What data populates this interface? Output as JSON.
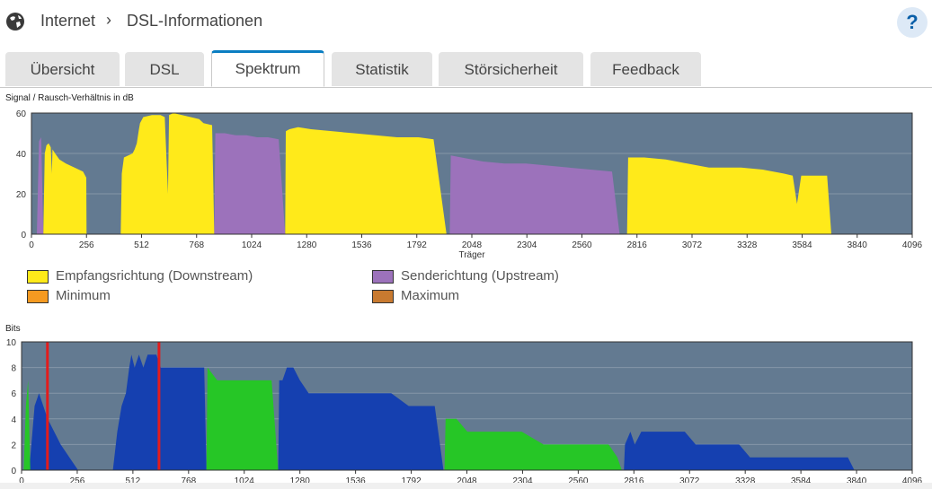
{
  "breadcrumb": {
    "root": "Internet",
    "separator": "›",
    "current": "DSL-Informationen",
    "help": "?"
  },
  "tabs": [
    {
      "label": "Übersicht",
      "active": false
    },
    {
      "label": "DSL",
      "active": false
    },
    {
      "label": "Spektrum",
      "active": true
    },
    {
      "label": "Statistik",
      "active": false
    },
    {
      "label": "Störsicherheit",
      "active": false
    },
    {
      "label": "Feedback",
      "active": false
    }
  ],
  "legend": {
    "downstream": {
      "label": "Empfangsrichtung (Downstream)",
      "color": "#ffea1a"
    },
    "upstream": {
      "label": "Senderichtung (Upstream)",
      "color": "#9c72bb"
    },
    "minimum": {
      "label": "Minimum",
      "color": "#f59a21"
    },
    "maximum": {
      "label": "Maximum",
      "color": "#c87a30"
    }
  },
  "colors": {
    "plot_bg": "#637a91",
    "downstream": "#ffea1a",
    "upstream": "#9c72bb",
    "bits_down": "#1540b0",
    "bits_up": "#26c626",
    "marker": "#e31c1c"
  },
  "chart_data": [
    {
      "type": "area",
      "title": "Signal / Rausch-Verhältnis in dB",
      "xlabel": "Träger",
      "ylabel": "",
      "xlim": [
        0,
        4096
      ],
      "ylim": [
        0,
        60
      ],
      "xticks": [
        0,
        256,
        512,
        768,
        1024,
        1280,
        1536,
        1792,
        2048,
        2304,
        2560,
        2816,
        3072,
        3328,
        3584,
        3840,
        4096
      ],
      "yticks": [
        0,
        20,
        40,
        60
      ],
      "grid": true,
      "series": [
        {
          "name": "Empfangsrichtung (Downstream)",
          "direction": "down",
          "segments": [
            [
              [
                55,
                0
              ],
              [
                62,
                40
              ],
              [
                70,
                44
              ],
              [
                80,
                45
              ],
              [
                90,
                43
              ],
              [
                95,
                30
              ],
              [
                98,
                42
              ],
              [
                110,
                40
              ],
              [
                130,
                37
              ],
              [
                160,
                35
              ],
              [
                200,
                33
              ],
              [
                240,
                31
              ],
              [
                255,
                28
              ],
              [
                256,
                0
              ]
            ],
            [
              [
                415,
                0
              ],
              [
                420,
                30
              ],
              [
                430,
                38
              ],
              [
                470,
                40
              ],
              [
                480,
                42
              ],
              [
                490,
                45
              ],
              [
                500,
                52
              ],
              [
                505,
                55
              ],
              [
                520,
                58
              ],
              [
                560,
                59
              ],
              [
                600,
                59
              ],
              [
                620,
                58
              ],
              [
                635,
                20
              ],
              [
                640,
                59
              ],
              [
                660,
                60
              ],
              [
                700,
                59
              ],
              [
                740,
                58
              ],
              [
                780,
                57
              ],
              [
                800,
                55
              ],
              [
                840,
                54
              ],
              [
                850,
                0
              ]
            ],
            [
              [
                1180,
                0
              ],
              [
                1183,
                51
              ],
              [
                1200,
                52
              ],
              [
                1240,
                53
              ],
              [
                1300,
                52
              ],
              [
                1400,
                51
              ],
              [
                1500,
                50
              ],
              [
                1600,
                49
              ],
              [
                1700,
                48
              ],
              [
                1800,
                48
              ],
              [
                1870,
                47
              ],
              [
                1930,
                0
              ]
            ]
          ]
        },
        {
          "name": "Senderichtung (Upstream)",
          "direction": "up",
          "segments": [
            [
              [
                25,
                0
              ],
              [
                35,
                46
              ],
              [
                45,
                48
              ],
              [
                55,
                0
              ]
            ],
            [
              [
                850,
                0
              ],
              [
                855,
                50
              ],
              [
                900,
                50
              ],
              [
                950,
                49
              ],
              [
                1000,
                49
              ],
              [
                1050,
                48
              ],
              [
                1100,
                48
              ],
              [
                1150,
                47
              ],
              [
                1180,
                0
              ]
            ],
            [
              [
                1945,
                0
              ],
              [
                1950,
                39
              ],
              [
                2000,
                38
              ],
              [
                2050,
                37
              ],
              [
                2100,
                36
              ],
              [
                2200,
                35
              ],
              [
                2300,
                35
              ],
              [
                2400,
                34
              ],
              [
                2500,
                33
              ],
              [
                2600,
                32
              ],
              [
                2700,
                31
              ],
              [
                2735,
                0
              ]
            ]
          ]
        },
        {
          "name": "Empfangsrichtung (Downstream)",
          "direction": "down",
          "segments": [
            [
              [
                2770,
                0
              ],
              [
                2775,
                38
              ],
              [
                2850,
                38
              ],
              [
                2950,
                37
              ],
              [
                3000,
                36
              ],
              [
                3050,
                35
              ],
              [
                3100,
                34
              ],
              [
                3150,
                33
              ],
              [
                3200,
                33
              ],
              [
                3300,
                33
              ],
              [
                3400,
                32
              ],
              [
                3450,
                31
              ],
              [
                3500,
                30
              ],
              [
                3540,
                29
              ],
              [
                3560,
                15
              ],
              [
                3580,
                29
              ],
              [
                3640,
                29
              ],
              [
                3700,
                29
              ],
              [
                3720,
                0
              ]
            ]
          ]
        }
      ]
    },
    {
      "type": "area",
      "title": "Bits",
      "xlabel": "",
      "ylabel": "",
      "xlim": [
        0,
        4096
      ],
      "ylim": [
        0,
        10
      ],
      "xticks": [
        0,
        256,
        512,
        768,
        1024,
        1280,
        1536,
        1792,
        2048,
        2304,
        2560,
        2816,
        3072,
        3328,
        3584,
        3840,
        4096
      ],
      "yticks": [
        0,
        2,
        4,
        6,
        8,
        10
      ],
      "grid": true,
      "markers_x": [
        119,
        632
      ],
      "series": [
        {
          "name": "Downstream",
          "segments": [
            [
              [
                35,
                0
              ],
              [
                60,
                5
              ],
              [
                80,
                6
              ],
              [
                100,
                5
              ],
              [
                120,
                4
              ],
              [
                150,
                3
              ],
              [
                180,
                2
              ],
              [
                220,
                1
              ],
              [
                260,
                0
              ]
            ],
            [
              [
                420,
                0
              ],
              [
                440,
                3
              ],
              [
                460,
                5
              ],
              [
                480,
                6
              ],
              [
                495,
                8
              ],
              [
                505,
                9
              ],
              [
                520,
                8
              ],
              [
                540,
                9
              ],
              [
                560,
                8
              ],
              [
                580,
                9
              ],
              [
                620,
                9
              ],
              [
                640,
                8
              ],
              [
                680,
                8
              ],
              [
                720,
                8
              ],
              [
                760,
                8
              ],
              [
                800,
                8
              ],
              [
                840,
                8
              ],
              [
                850,
                0
              ]
            ],
            [
              [
                1180,
                0
              ],
              [
                1185,
                7
              ],
              [
                1200,
                7
              ],
              [
                1220,
                8
              ],
              [
                1250,
                8
              ],
              [
                1280,
                7
              ],
              [
                1320,
                6
              ],
              [
                1400,
                6
              ],
              [
                1500,
                6
              ],
              [
                1600,
                6
              ],
              [
                1700,
                6
              ],
              [
                1780,
                5
              ],
              [
                1850,
                5
              ],
              [
                1900,
                5
              ],
              [
                1940,
                0
              ]
            ],
            [
              [
                2770,
                0
              ],
              [
                2775,
                2
              ],
              [
                2800,
                3
              ],
              [
                2820,
                2
              ],
              [
                2850,
                3
              ],
              [
                2900,
                3
              ],
              [
                2950,
                3
              ],
              [
                3000,
                3
              ],
              [
                3050,
                3
              ],
              [
                3100,
                2
              ],
              [
                3200,
                2
              ],
              [
                3300,
                2
              ],
              [
                3350,
                1
              ],
              [
                3400,
                1
              ],
              [
                3500,
                1
              ],
              [
                3600,
                1
              ],
              [
                3700,
                1
              ],
              [
                3800,
                1
              ],
              [
                3830,
                0
              ]
            ]
          ]
        },
        {
          "name": "Upstream",
          "segments": [
            [
              [
                10,
                0
              ],
              [
                20,
                5
              ],
              [
                30,
                7
              ],
              [
                40,
                0
              ]
            ],
            [
              [
                850,
                0
              ],
              [
                855,
                8
              ],
              [
                900,
                7
              ],
              [
                950,
                7
              ],
              [
                1000,
                7
              ],
              [
                1050,
                7
              ],
              [
                1100,
                7
              ],
              [
                1150,
                7
              ],
              [
                1180,
                0
              ]
            ],
            [
              [
                1945,
                0
              ],
              [
                1950,
                4
              ],
              [
                2000,
                4
              ],
              [
                2050,
                3
              ],
              [
                2100,
                3
              ],
              [
                2200,
                3
              ],
              [
                2300,
                3
              ],
              [
                2400,
                2
              ],
              [
                2500,
                2
              ],
              [
                2600,
                2
              ],
              [
                2700,
                2
              ],
              [
                2740,
                1
              ],
              [
                2760,
                0
              ]
            ]
          ]
        }
      ]
    }
  ]
}
